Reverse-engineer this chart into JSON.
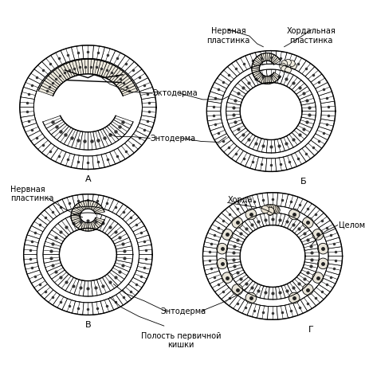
{
  "bg_color": "#ffffff",
  "line_color": "#000000",
  "cell_fill": "#ffffff",
  "hatch_fill": "#f0ece0",
  "labels": {
    "ektoderm": "Эктодерма",
    "entoderm": "Энтодерма",
    "nervnaya_plastinka": "Нервная\nпластинка",
    "chordalnaya_plastinka": "Хордальная\nпластинка",
    "chorda": "Хорда",
    "tselom": "Целом",
    "polost": "Полость первичной\nкишки",
    "A": "А",
    "B": "Б",
    "V": "В",
    "G": "Г"
  }
}
